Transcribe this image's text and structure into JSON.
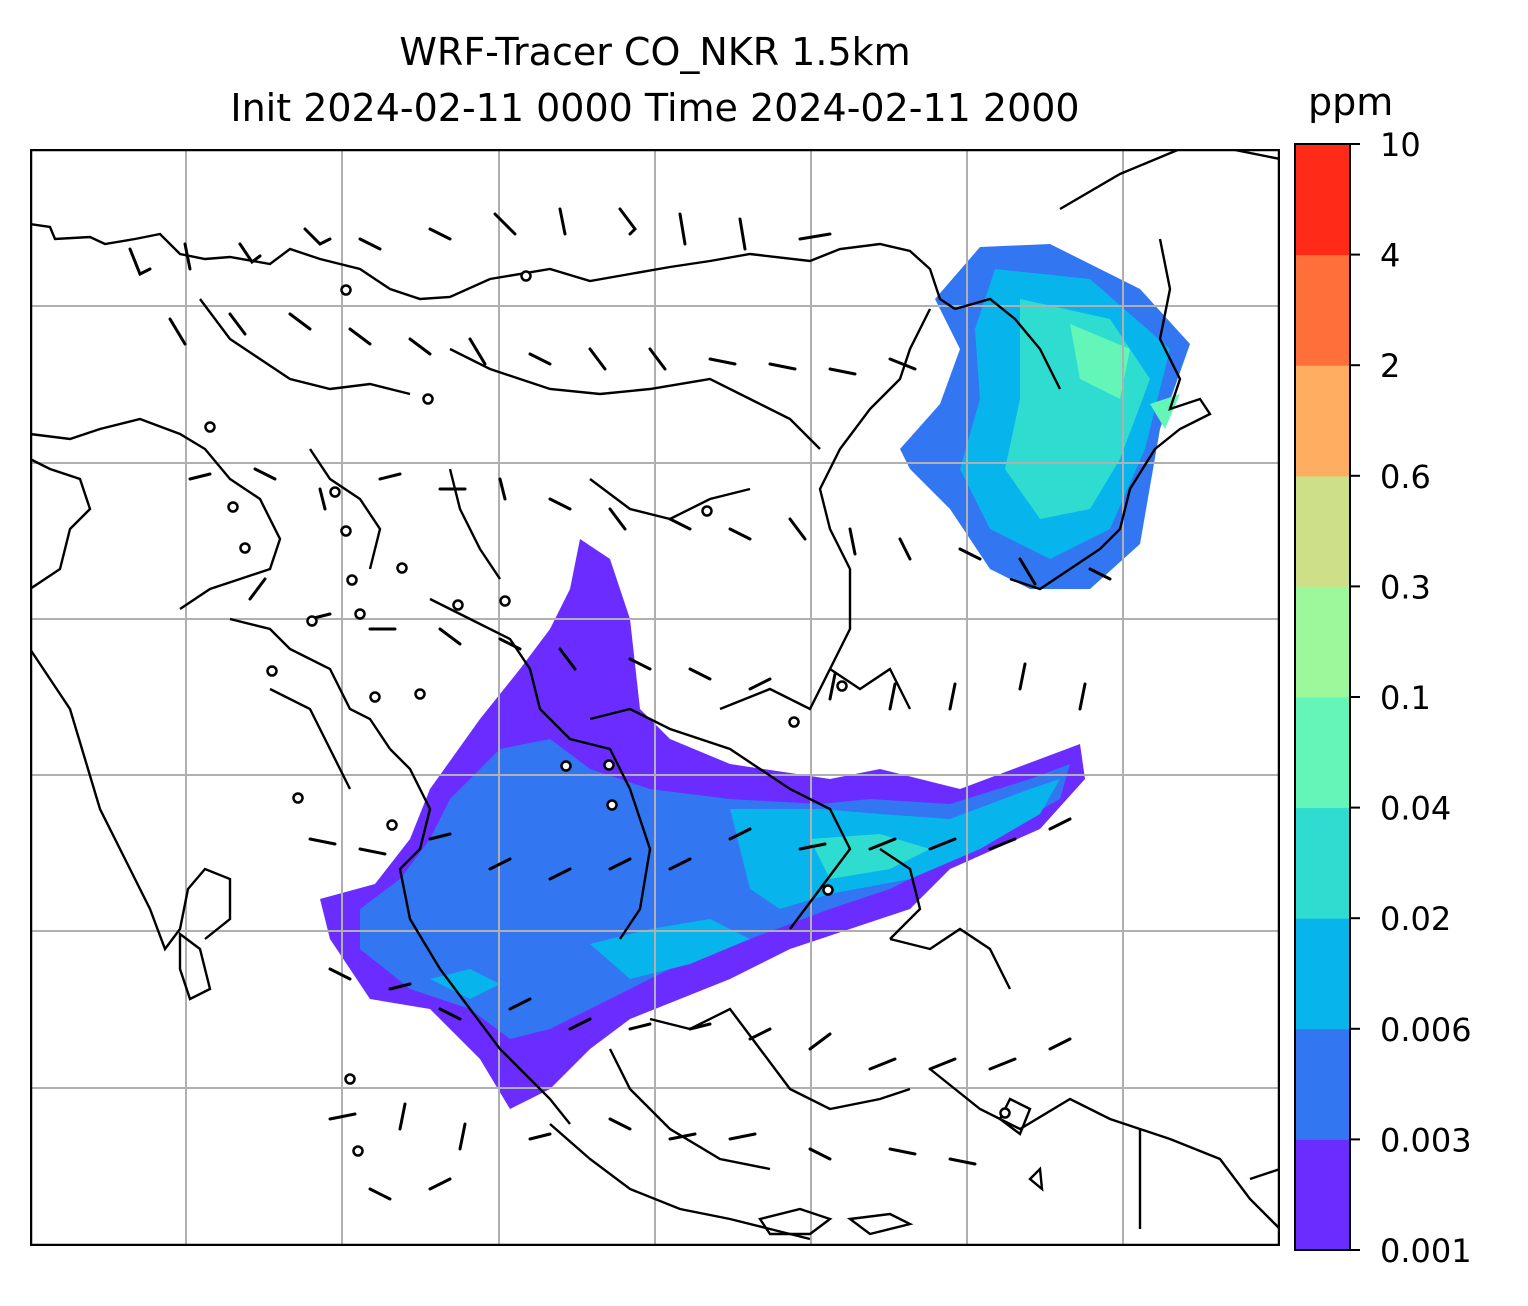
{
  "title_line1": "WRF-Tracer CO_NKR 1.5km",
  "title_line2": "Init 2024-02-11 0000 Time 2024-02-11 2000",
  "colorbar": {
    "unit": "ppm",
    "ticks": [
      "0.001",
      "0.003",
      "0.006",
      "0.02",
      "0.04",
      "0.1",
      "0.3",
      "0.6",
      "2",
      "4",
      "10"
    ],
    "colors": [
      "#6a2cff",
      "#3276f2",
      "#08b4ec",
      "#2fdcd0",
      "#64f6b8",
      "#9cf89a",
      "#cde087",
      "#ffad60",
      "#ff6f3a",
      "#ff2a18"
    ]
  },
  "map": {
    "gridlines": "on",
    "coastlines": "on",
    "wind_barbs": "on"
  }
}
